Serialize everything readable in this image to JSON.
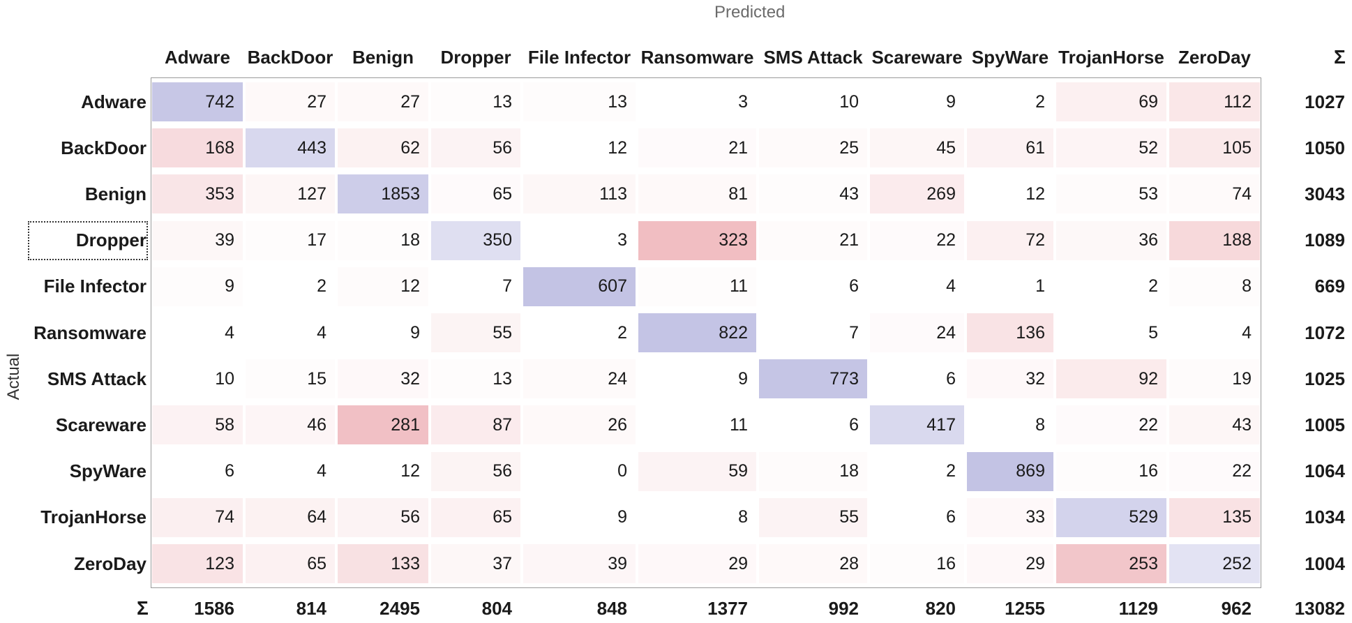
{
  "chart_data": {
    "type": "heatmap",
    "title": "",
    "xlabel": "Predicted",
    "ylabel": "Actual",
    "classes": [
      "Adware",
      "BackDoor",
      "Benign",
      "Dropper",
      "File Infector",
      "Ransomware",
      "SMS Attack",
      "Scareware",
      "SpyWare",
      "TrojanHorse",
      "ZeroDay"
    ],
    "matrix": [
      [
        742,
        27,
        27,
        13,
        13,
        3,
        10,
        9,
        2,
        69,
        112
      ],
      [
        168,
        443,
        62,
        56,
        12,
        21,
        25,
        45,
        61,
        52,
        105
      ],
      [
        353,
        127,
        1853,
        65,
        113,
        81,
        43,
        269,
        12,
        53,
        74
      ],
      [
        39,
        17,
        18,
        350,
        3,
        323,
        21,
        22,
        72,
        36,
        188
      ],
      [
        9,
        2,
        12,
        7,
        607,
        11,
        6,
        4,
        1,
        2,
        8
      ],
      [
        4,
        4,
        9,
        55,
        2,
        822,
        7,
        24,
        136,
        5,
        4
      ],
      [
        10,
        15,
        32,
        13,
        24,
        9,
        773,
        6,
        32,
        92,
        19
      ],
      [
        58,
        46,
        281,
        87,
        26,
        11,
        6,
        417,
        8,
        22,
        43
      ],
      [
        6,
        4,
        12,
        56,
        0,
        59,
        18,
        2,
        869,
        16,
        22
      ],
      [
        74,
        64,
        56,
        65,
        9,
        8,
        55,
        6,
        33,
        529,
        135
      ],
      [
        123,
        65,
        133,
        37,
        39,
        29,
        28,
        16,
        29,
        253,
        252
      ]
    ],
    "row_totals": [
      1027,
      1050,
      3043,
      1089,
      669,
      1072,
      1025,
      1005,
      1064,
      1034,
      1004
    ],
    "col_totals": [
      1586,
      814,
      2495,
      804,
      848,
      1377,
      992,
      820,
      1255,
      1129,
      962
    ],
    "grand_total": 13082,
    "sum_symbol": "Σ",
    "focused_row": "Dropper",
    "colors": {
      "diagonal": "#7a7ac4",
      "off_diagonal": "#d9535f",
      "frame": "#9a9a9a"
    }
  }
}
